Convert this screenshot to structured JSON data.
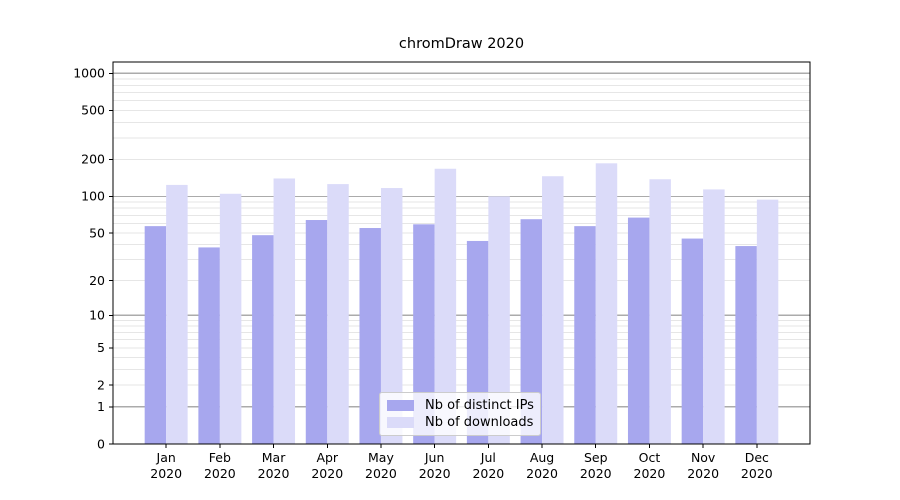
{
  "chart_data": {
    "type": "bar",
    "title": "chromDraw 2020",
    "categories": [
      "Jan 2020",
      "Feb 2020",
      "Mar 2020",
      "Apr 2020",
      "May 2020",
      "Jun 2020",
      "Jul 2020",
      "Aug 2020",
      "Sep 2020",
      "Oct 2020",
      "Nov 2020",
      "Dec 2020"
    ],
    "series": [
      {
        "name": "Nb of distinct IPs",
        "color": "#a7a7ee",
        "values": [
          57,
          38,
          48,
          64,
          55,
          59,
          43,
          65,
          57,
          67,
          45,
          39
        ]
      },
      {
        "name": "Nb of downloads",
        "color": "#dbdbf9",
        "values": [
          124,
          105,
          140,
          126,
          117,
          168,
          100,
          146,
          186,
          138,
          114,
          94
        ]
      }
    ],
    "xlabel": "",
    "ylabel": "",
    "yscale": "symlog-log1p",
    "yticks": [
      0,
      1,
      2,
      5,
      10,
      20,
      50,
      100,
      200,
      500,
      1000
    ],
    "ylim": [
      0,
      1233
    ],
    "grid": "horizontal, minor log gridlines on",
    "legend_position": "lower center inside plot"
  }
}
